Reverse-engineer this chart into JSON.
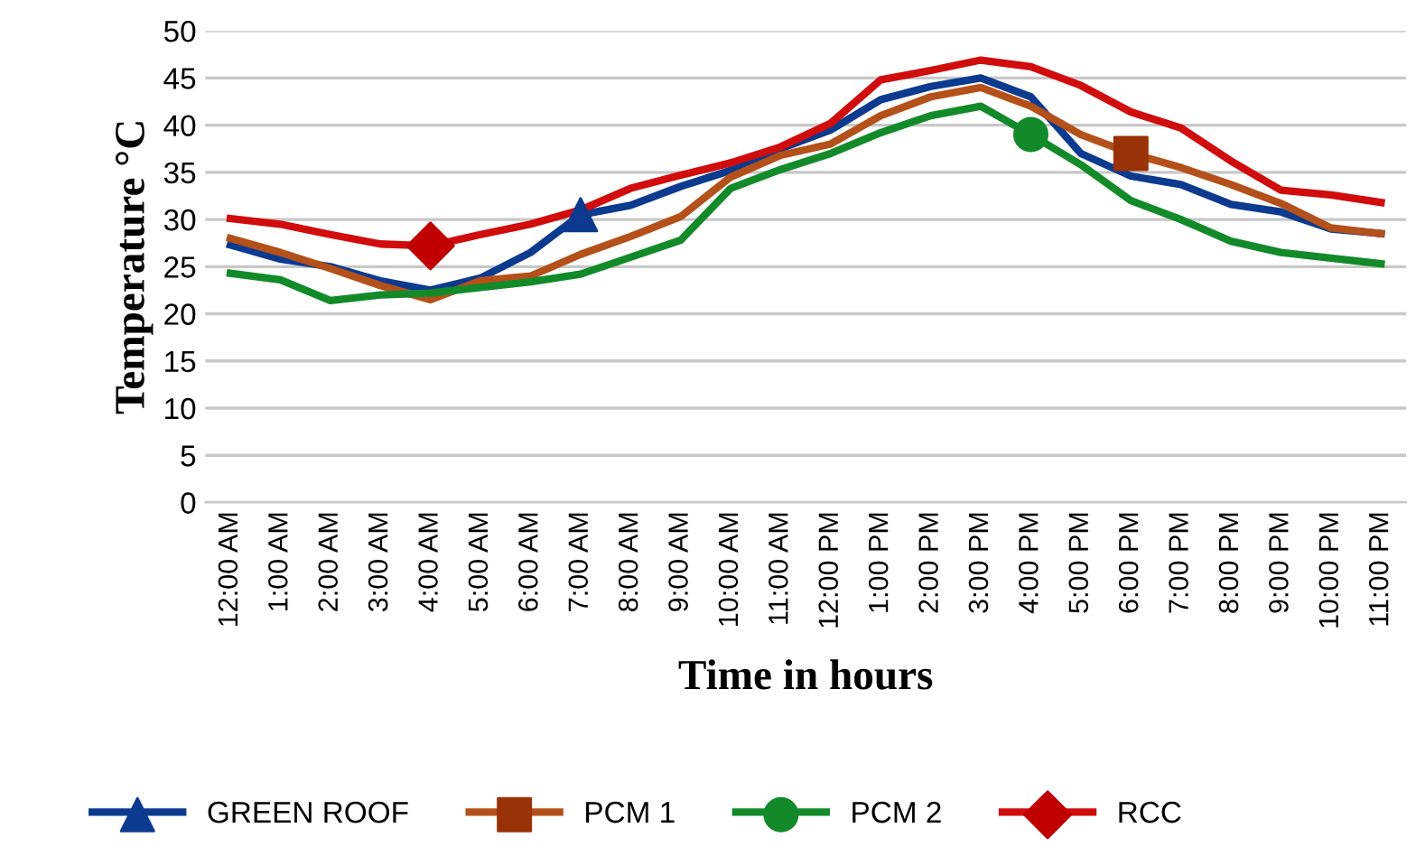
{
  "chart_data": {
    "type": "line",
    "xlabel": "Time in hours",
    "ylabel": "Temperature °C",
    "categories": [
      "12:00 AM",
      "1:00 AM",
      "2:00 AM",
      "3:00 AM",
      "4:00 AM",
      "5:00 AM",
      "6:00 AM",
      "7:00 AM",
      "8:00 AM",
      "9:00 AM",
      "10:00 AM",
      "11:00 AM",
      "12:00 PM",
      "1:00 PM",
      "2:00 PM",
      "3:00 PM",
      "4:00 PM",
      "5:00 PM",
      "6:00 PM",
      "7:00 PM",
      "8:00 PM",
      "9:00 PM",
      "10:00 PM",
      "11:00 PM"
    ],
    "series": [
      {
        "name": "GREEN ROOF",
        "color": "#0b3a8f",
        "values": [
          27.3,
          25.8,
          25,
          23.5,
          22.5,
          23.8,
          26.5,
          30.5,
          31.5,
          33.5,
          35.2,
          37.5,
          39.5,
          42.7,
          44.1,
          45,
          43,
          37,
          34.6,
          33.7,
          31.6,
          30.8,
          29,
          28.5
        ]
      },
      {
        "name": "PCM 1",
        "color": "#b4501a",
        "values": [
          28,
          26.5,
          24.8,
          23,
          21.5,
          23.5,
          24,
          26.3,
          28.2,
          30.3,
          34.5,
          36.8,
          38,
          41,
          43,
          44,
          42,
          39,
          37,
          35.5,
          33.7,
          31.7,
          29.1,
          28.5
        ]
      },
      {
        "name": "PCM 2",
        "color": "#138a2a",
        "values": [
          24.3,
          23.6,
          21.4,
          22,
          22.2,
          22.8,
          23.4,
          24.2,
          26,
          27.8,
          33.3,
          35.3,
          37,
          39.2,
          41,
          42,
          39,
          35.8,
          32,
          30,
          27.7,
          26.5,
          25.9,
          25.3
        ]
      },
      {
        "name": "RCC",
        "color": "#d00c0c",
        "values": [
          30.1,
          29.5,
          28.4,
          27.4,
          27.2,
          28.4,
          29.5,
          31,
          33.3,
          34.7,
          36,
          37.7,
          40.2,
          44.8,
          45.8,
          46.9,
          46.2,
          44.2,
          41.4,
          39.7,
          36.2,
          33.1,
          32.6,
          31.8
        ]
      },
      {
        "type": "scatter",
        "color": "#0b3a8f",
        "marker": "triangle",
        "x": [
          "7:00 AM"
        ],
        "values": [
          30.5
        ]
      },
      {
        "type": "scatter",
        "color": "#9a3208",
        "marker": "square",
        "x": [
          "6:00 PM"
        ],
        "values": [
          37
        ]
      },
      {
        "type": "scatter",
        "color": "#138a2a",
        "marker": "circle",
        "x": [
          "4:00 PM"
        ],
        "values": [
          39
        ]
      },
      {
        "type": "scatter",
        "color": "#c00000",
        "marker": "diamond",
        "x": [
          "4:00 AM"
        ],
        "values": [
          27.2
        ]
      }
    ],
    "ylim": [
      0,
      50
    ],
    "yticks": [
      0,
      5,
      10,
      15,
      20,
      25,
      30,
      35,
      40,
      45,
      50
    ],
    "grid": "y",
    "legend": "bottom",
    "line_style": "solid"
  }
}
